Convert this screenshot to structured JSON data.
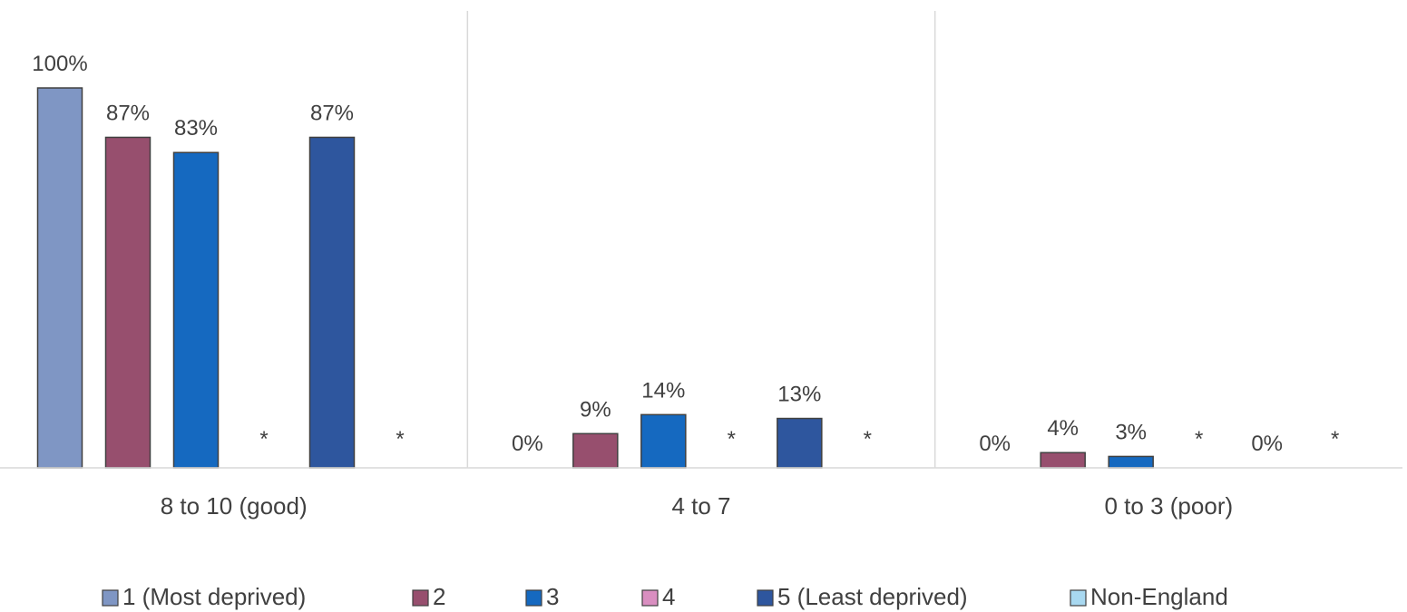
{
  "chart_data": {
    "type": "bar",
    "categories": [
      "8 to 10 (good)",
      "4 to 7",
      "0 to 3 (poor)"
    ],
    "series": [
      {
        "name": "1 (Most deprived)",
        "color": "#7F96C4",
        "values": [
          100,
          0,
          0
        ],
        "labels": [
          "100%",
          "0%",
          "0%"
        ]
      },
      {
        "name": "2",
        "color": "#974F6E",
        "values": [
          87,
          9,
          4
        ],
        "labels": [
          "87%",
          "9%",
          "4%"
        ]
      },
      {
        "name": "3",
        "color": "#1569C0",
        "values": [
          83,
          14,
          3
        ],
        "labels": [
          "83%",
          "14%",
          "3%"
        ]
      },
      {
        "name": "4",
        "color": "#D98EC0",
        "values": [
          null,
          null,
          null
        ],
        "labels": [
          "*",
          "*",
          "*"
        ]
      },
      {
        "name": "5 (Least deprived)",
        "color": "#2E569E",
        "values": [
          87,
          13,
          0
        ],
        "labels": [
          "87%",
          "13%",
          "0%"
        ]
      },
      {
        "name": "Non-England",
        "color": "#A8D8F0",
        "values": [
          null,
          null,
          null
        ],
        "labels": [
          "*",
          "*",
          "*"
        ]
      }
    ],
    "ylim": [
      0,
      100
    ],
    "grid": false,
    "legend_position": "bottom"
  }
}
